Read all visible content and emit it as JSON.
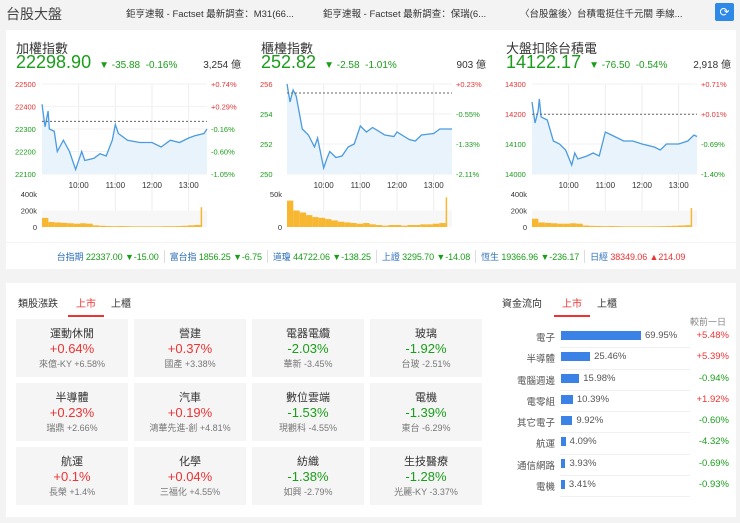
{
  "header": {
    "title": "台股大盤",
    "news": [
      "鉅亨速報 - Factset 最新調查：M31(66...",
      "鉅亨速報 - Factset 最新調查：保瑞(6...",
      "〈台股盤後〉台積電挺住千元關 季線..."
    ],
    "refresh_icon": "refresh-icon"
  },
  "colors": {
    "up": "#e33333",
    "down": "#1a9e1a",
    "line": "#4a9be0",
    "volume": "#f7b731",
    "bar": "#3b82e6"
  },
  "indices": [
    {
      "name": "加權指數",
      "value": "22298.90",
      "change": "-35.88",
      "pct": "-0.16%",
      "volume": "3,254 億"
    },
    {
      "name": "櫃檯指數",
      "value": "252.82",
      "change": "-2.58",
      "pct": "-1.01%",
      "volume": "903 億"
    },
    {
      "name": "大盤扣除台積電",
      "value": "14122.17",
      "change": "-76.50",
      "pct": "-0.54%",
      "volume": "2,918 億"
    }
  ],
  "chart_data": [
    {
      "type": "line",
      "x_ticks": [
        "10:00",
        "11:00",
        "12:00",
        "13:00"
      ],
      "y_ticks": [
        "22500",
        "22400",
        "22300",
        "22200",
        "22100"
      ],
      "y_right_ticks": [
        "+0.74%",
        "+0.29%",
        "-0.16%",
        "-0.60%",
        "-1.05%"
      ],
      "ylim": [
        22100,
        22500
      ],
      "prev_close": 22334,
      "x": [
        "09:00",
        "09:05",
        "09:10",
        "09:12",
        "09:20",
        "09:25",
        "09:35",
        "09:45",
        "09:55",
        "10:05",
        "10:10",
        "10:25",
        "10:35",
        "10:45",
        "10:55",
        "11:00",
        "11:05",
        "11:20",
        "11:40",
        "12:00",
        "12:15",
        "12:30",
        "12:45",
        "13:00",
        "13:10",
        "13:25",
        "13:30"
      ],
      "y": [
        22410,
        22310,
        22380,
        22300,
        22290,
        22200,
        22250,
        22200,
        22120,
        22200,
        22160,
        22170,
        22190,
        22180,
        22250,
        22320,
        22280,
        22250,
        22240,
        22240,
        22220,
        22250,
        22240,
        22260,
        22270,
        22280,
        22300
      ],
      "volume": {
        "ticks": [
          "400k",
          "200k",
          "0"
        ],
        "ylim": [
          0,
          400000
        ],
        "values": [
          110000,
          60000,
          55000,
          50000,
          45000,
          40000,
          45000,
          40000,
          20000,
          15000,
          12000,
          10000,
          12000,
          10000,
          8000,
          8000,
          8000,
          8000,
          8000,
          10000,
          10000,
          12000,
          15000,
          20000,
          25000,
          240000
        ]
      }
    },
    {
      "type": "line",
      "x_ticks": [
        "10:00",
        "11:00",
        "12:00",
        "13:00"
      ],
      "y_ticks": [
        "256",
        "254",
        "252",
        "250"
      ],
      "y_right_ticks": [
        "+0.23%",
        "-0.55%",
        "-1.33%",
        "-2.11%"
      ],
      "ylim": [
        250,
        256
      ],
      "prev_close": 255.4,
      "x": [
        "09:00",
        "09:05",
        "09:10",
        "09:15",
        "09:25",
        "09:35",
        "09:45",
        "09:50",
        "10:00",
        "10:05",
        "10:10",
        "10:20",
        "10:30",
        "10:40",
        "10:50",
        "11:00",
        "11:10",
        "11:20",
        "11:40",
        "11:55",
        "12:00",
        "12:20",
        "12:30",
        "12:40",
        "13:00",
        "13:10",
        "13:30"
      ],
      "y": [
        256,
        254.8,
        255.6,
        255.2,
        253,
        252.6,
        251.8,
        252.4,
        250.4,
        251.0,
        251.5,
        251.1,
        251.2,
        251.8,
        252,
        253.2,
        252.8,
        253.1,
        252.6,
        252.5,
        252.8,
        252.3,
        252.2,
        252.6,
        252.7,
        253,
        253.0
      ],
      "volume": {
        "ticks": [
          "50k",
          "0"
        ],
        "ylim": [
          0,
          50000
        ],
        "values": [
          40000,
          25000,
          22000,
          18000,
          15000,
          14000,
          12000,
          10000,
          8000,
          7000,
          6000,
          5000,
          6000,
          4000,
          3000,
          2000,
          3000,
          3000,
          2000,
          3000,
          3000,
          4000,
          4000,
          5000,
          6000,
          45000
        ]
      }
    },
    {
      "type": "line",
      "x_ticks": [
        "10:00",
        "11:00",
        "12:00",
        "13:00"
      ],
      "y_ticks": [
        "14300",
        "14200",
        "14100",
        "14000"
      ],
      "y_right_ticks": [
        "+0.71%",
        "+0.01%",
        "-0.69%",
        "-1.40%"
      ],
      "ylim": [
        14000,
        14300
      ],
      "prev_close": 14199,
      "x": [
        "09:00",
        "09:05",
        "09:10",
        "09:12",
        "09:15",
        "09:25",
        "09:35",
        "09:45",
        "09:55",
        "10:05",
        "10:10",
        "10:15",
        "10:30",
        "10:40",
        "10:50",
        "11:00",
        "11:10",
        "11:30",
        "11:45",
        "12:00",
        "12:20",
        "12:30",
        "12:40",
        "13:00",
        "13:15",
        "13:25",
        "13:30"
      ],
      "y": [
        14240,
        14170,
        14210,
        14250,
        14190,
        14180,
        14110,
        14100,
        14080,
        14030,
        14070,
        14050,
        14060,
        14070,
        14060,
        14140,
        14130,
        14110,
        14110,
        14100,
        14090,
        14080,
        14100,
        14100,
        14110,
        14130,
        14125
      ],
      "volume": {
        "ticks": [
          "400k",
          "200k",
          "0"
        ],
        "ylim": [
          0,
          400000
        ],
        "values": [
          100000,
          55000,
          50000,
          45000,
          40000,
          40000,
          45000,
          40000,
          18000,
          14000,
          12000,
          10000,
          12000,
          10000,
          8000,
          8000,
          8000,
          8000,
          8000,
          9000,
          10000,
          12000,
          15000,
          18000,
          22000,
          230000
        ]
      }
    }
  ],
  "ticker": [
    {
      "name": "台指期",
      "value": "22337.00",
      "change": "▼-15.00",
      "dir": "down"
    },
    {
      "name": "富台指",
      "value": "1856.25",
      "change": "▼-6.75",
      "dir": "down"
    },
    {
      "name": "道瓊",
      "value": "44722.06",
      "change": "▼-138.25",
      "dir": "down"
    },
    {
      "name": "上證",
      "value": "3295.70",
      "change": "▼-14.08",
      "dir": "down"
    },
    {
      "name": "恆生",
      "value": "19366.96",
      "change": "▼-236.17",
      "dir": "down"
    },
    {
      "name": "日經",
      "value": "38349.06",
      "change": "▲214.09",
      "dir": "up"
    }
  ],
  "sectors": {
    "title": "類股漲跌",
    "tabs": [
      "上市",
      "上櫃"
    ],
    "items": [
      {
        "name": "運動休閒",
        "pct": "+0.64%",
        "top": "來億-KY  +6.58%",
        "dir": "up"
      },
      {
        "name": "營建",
        "pct": "+0.37%",
        "top": "國產  +3.38%",
        "dir": "up"
      },
      {
        "name": "電器電纜",
        "pct": "-2.03%",
        "top": "華新  -3.45%",
        "dir": "down"
      },
      {
        "name": "玻璃",
        "pct": "-1.92%",
        "top": "台玻  -2.51%",
        "dir": "down"
      },
      {
        "name": "半導體",
        "pct": "+0.23%",
        "top": "瑞鼎  +2.66%",
        "dir": "up"
      },
      {
        "name": "汽車",
        "pct": "+0.19%",
        "top": "鴻華先進-創  +4.81%",
        "dir": "up"
      },
      {
        "name": "數位雲端",
        "pct": "-1.53%",
        "top": "現觀科  -4.55%",
        "dir": "down"
      },
      {
        "name": "電機",
        "pct": "-1.39%",
        "top": "東台  -6.29%",
        "dir": "down"
      },
      {
        "name": "航運",
        "pct": "+0.1%",
        "top": "長榮  +1.4%",
        "dir": "up"
      },
      {
        "name": "化學",
        "pct": "+0.04%",
        "top": "三福化  +4.55%",
        "dir": "up"
      },
      {
        "name": "紡織",
        "pct": "-1.38%",
        "top": "如興  -2.79%",
        "dir": "down"
      },
      {
        "name": "生技醫療",
        "pct": "-1.28%",
        "top": "光麗-KY  -3.37%",
        "dir": "down"
      }
    ]
  },
  "flow": {
    "title": "資金流向",
    "tabs": [
      "上市",
      "上櫃"
    ],
    "compare_label": "較前一日",
    "items": [
      {
        "name": "電子",
        "share": 69.95,
        "share_label": "69.95%",
        "delta": "+5.48%",
        "dir": "up"
      },
      {
        "name": "半導體",
        "share": 25.46,
        "share_label": "25.46%",
        "delta": "+5.39%",
        "dir": "up"
      },
      {
        "name": "電腦週邊",
        "share": 15.98,
        "share_label": "15.98%",
        "delta": "-0.94%",
        "dir": "down"
      },
      {
        "name": "電零組",
        "share": 10.39,
        "share_label": "10.39%",
        "delta": "+1.92%",
        "dir": "up"
      },
      {
        "name": "其它電子",
        "share": 9.92,
        "share_label": "9.92%",
        "delta": "-0.60%",
        "dir": "down"
      },
      {
        "name": "航運",
        "share": 4.09,
        "share_label": "4.09%",
        "delta": "-4.32%",
        "dir": "down"
      },
      {
        "name": "通信網路",
        "share": 3.93,
        "share_label": "3.93%",
        "delta": "-0.69%",
        "dir": "down"
      },
      {
        "name": "電機",
        "share": 3.41,
        "share_label": "3.41%",
        "delta": "-0.93%",
        "dir": "down"
      }
    ]
  }
}
